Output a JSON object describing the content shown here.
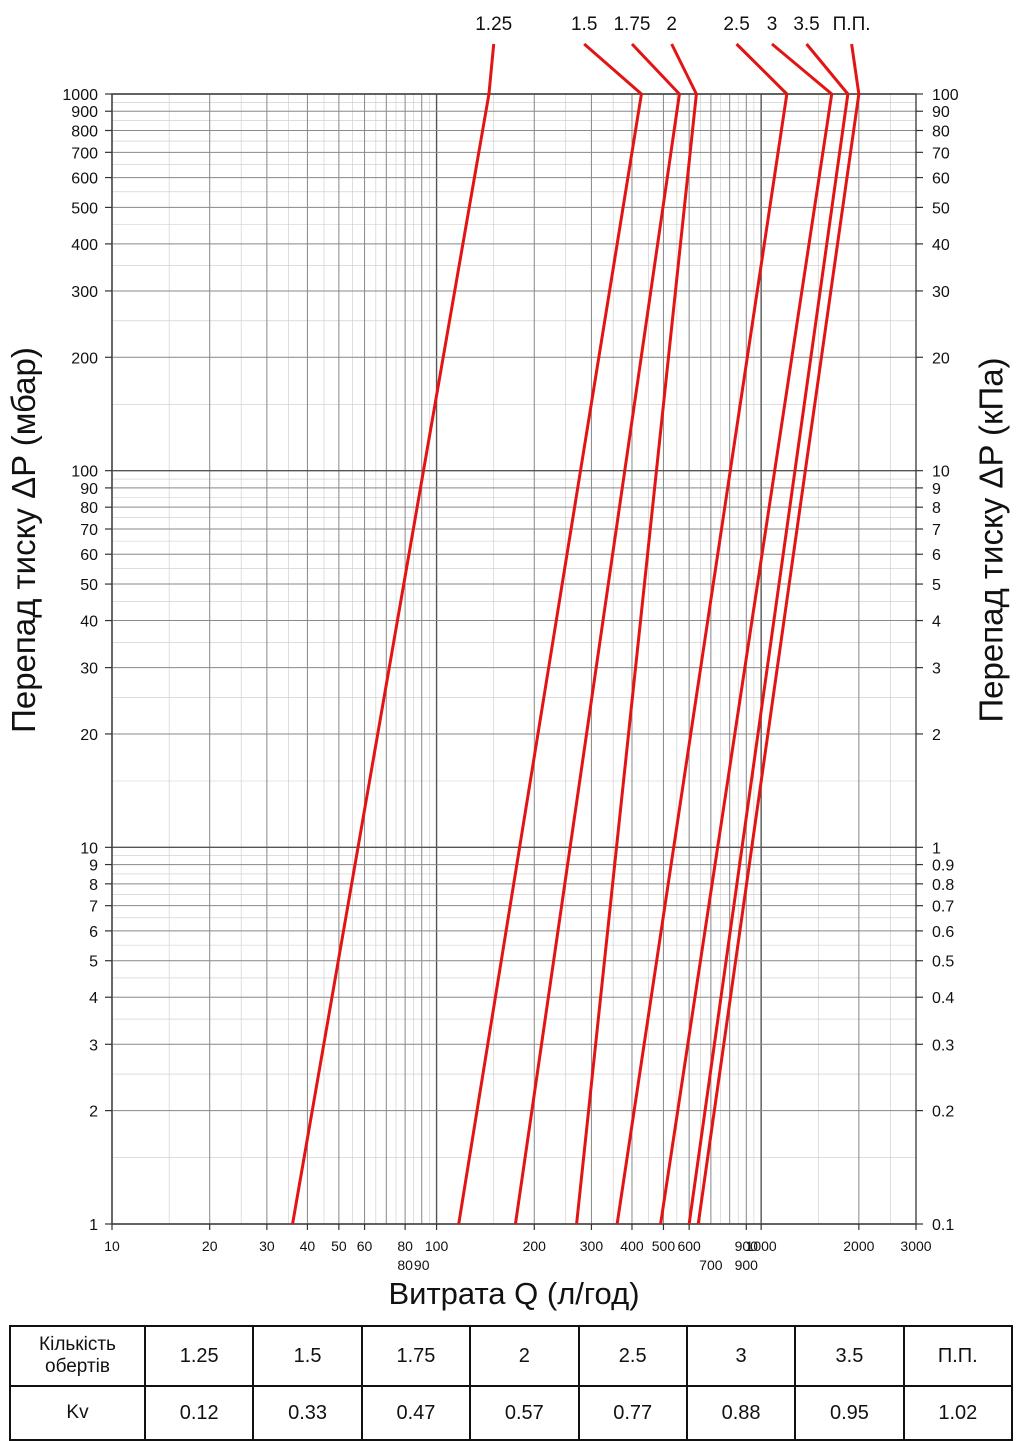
{
  "chart_data": {
    "type": "line",
    "x_scale": "log",
    "y_scale": "log",
    "xlabel": "Витрата Q (л/год)",
    "ylabel_left": "Перепад тиску ΔP (мбар)",
    "ylabel_right": "Перепад тиску ΔP  (кПа)",
    "xlim": [
      10,
      3000
    ],
    "ylim": [
      1,
      1000
    ],
    "y_right_factor": 0.1,
    "grid": true,
    "x_ticks_main": [
      "10",
      "20",
      "30",
      "40",
      "50",
      "60",
      "80",
      "100",
      "200",
      "300",
      "400",
      "500",
      "600",
      "900",
      "1000",
      "2000",
      "3000"
    ],
    "x_ticks_main_values": [
      10,
      20,
      30,
      40,
      50,
      60,
      80,
      100,
      200,
      300,
      400,
      500,
      600,
      900,
      1000,
      2000,
      3000
    ],
    "x_ticks_sub": [
      "80",
      "90",
      "700",
      "900"
    ],
    "x_ticks_sub_values": [
      80,
      90,
      700,
      900
    ],
    "y_ticks_left": [
      "1",
      "2",
      "3",
      "4",
      "5",
      "6",
      "7",
      "8",
      "9",
      "10",
      "20",
      "30",
      "40",
      "50",
      "60",
      "70",
      "80",
      "90",
      "100",
      "200",
      "300",
      "400",
      "500",
      "600",
      "700",
      "800",
      "900",
      "1000"
    ],
    "y_ticks_right": [
      "0.1",
      "0.2",
      "0.3",
      "0.4",
      "0.5",
      "0.6",
      "0.7",
      "0.8",
      "0.9",
      "1",
      "2",
      "3",
      "4",
      "5",
      "6",
      "7",
      "8",
      "9",
      "10",
      "20",
      "30",
      "40",
      "50",
      "60",
      "70",
      "80",
      "90",
      "100"
    ],
    "y_tick_values": [
      1,
      2,
      3,
      4,
      5,
      6,
      7,
      8,
      9,
      10,
      20,
      30,
      40,
      50,
      60,
      70,
      80,
      90,
      100,
      200,
      300,
      400,
      500,
      600,
      700,
      800,
      900,
      1000
    ],
    "series": [
      {
        "name": "1.25",
        "points": [
          [
            36,
            1
          ],
          [
            145,
            1000
          ]
        ],
        "label_q": 150
      },
      {
        "name": "1.5",
        "points": [
          [
            117,
            1
          ],
          [
            400,
            700
          ]
        ],
        "label_q": 285
      },
      {
        "name": "1.75",
        "points": [
          [
            175,
            1
          ],
          [
            560,
            1000
          ]
        ],
        "label_q": 400
      },
      {
        "name": "2",
        "points": [
          [
            270,
            1
          ],
          [
            580,
            500
          ]
        ],
        "label_q": 530
      },
      {
        "name": "2.5",
        "points": [
          [
            360,
            1
          ],
          [
            1200,
            1000
          ]
        ],
        "label_q": 840
      },
      {
        "name": "3",
        "points": [
          [
            490,
            1
          ],
          [
            1650,
            1000
          ]
        ],
        "label_q": 1080
      },
      {
        "name": "3.5",
        "points": [
          [
            600,
            1
          ],
          [
            1850,
            1000
          ]
        ],
        "label_q": 1380
      },
      {
        "name": "П.П.",
        "points": [
          [
            640,
            1
          ],
          [
            2000,
            1000
          ]
        ],
        "label_q": 1900
      }
    ],
    "line_color": "#e31414"
  },
  "table": {
    "row1_header": [
      "Кількість",
      "обертів"
    ],
    "row2_header": "Kv",
    "turns": [
      "1.25",
      "1.5",
      "1.75",
      "2",
      "2.5",
      "3",
      "3.5",
      "П.П."
    ],
    "kv": [
      "0.12",
      "0.33",
      "0.47",
      "0.57",
      "0.77",
      "0.88",
      "0.95",
      "1.02"
    ]
  }
}
